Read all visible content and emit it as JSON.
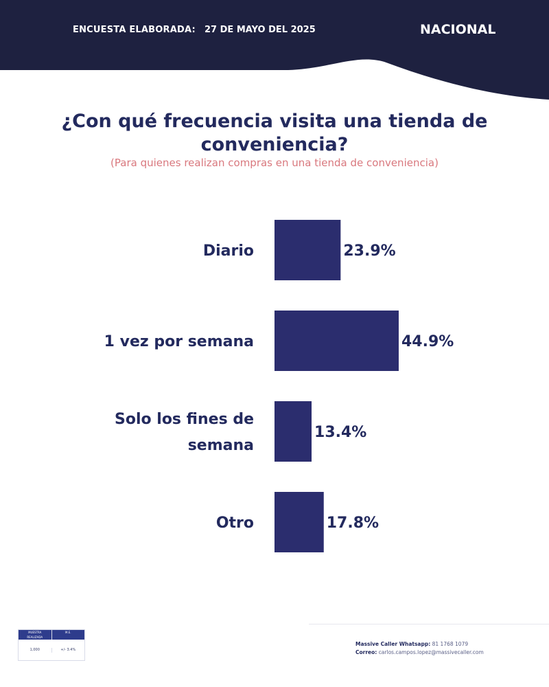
{
  "header": {
    "survey_label": "ENCUESTA ELABORADA:",
    "survey_date": "27 DE MAYO DEL 2025",
    "scope": "NACIONAL"
  },
  "colors": {
    "navy": "#1e2140",
    "bar": "#2b2d6e",
    "accent": "#d9787e"
  },
  "question": {
    "line1": "¿Con qué frecuencia visita una tienda de",
    "line2": "conveniencia?",
    "subtitle": "(Para quienes realizan compras en una tienda de conveniencia)"
  },
  "chart_data": {
    "type": "bar",
    "orientation": "horizontal",
    "categories": [
      "Diario",
      "1 vez por semana",
      "Solo los fines de semana",
      "Otro"
    ],
    "values": [
      23.9,
      44.9,
      13.4,
      17.8
    ],
    "value_labels": [
      "23.9%",
      "44.9%",
      "13.4%",
      "17.8%"
    ],
    "xlim": [
      0,
      50
    ],
    "grid": false,
    "legend": "none"
  },
  "footer": {
    "contact_whatsapp_label": "Massive Caller Whatsapp:",
    "contact_whatsapp": "81 1768 1079",
    "contact_email_label": "Correo:",
    "contact_email": "carlos.campos.lopez@massivecaller.com",
    "table_headers": [
      "MUESTRA\nREALIZADA",
      "M.E."
    ],
    "table_values": [
      "1,000",
      "+/- 3.4%"
    ]
  }
}
